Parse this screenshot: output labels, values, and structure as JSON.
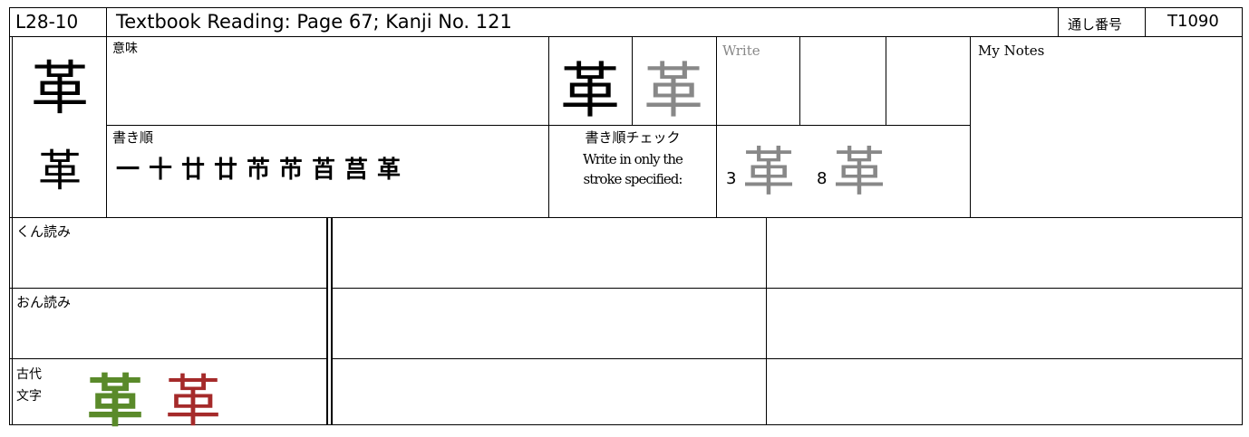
{
  "header": {
    "code": "L28-10",
    "title": "Textbook Reading: Page 67; Kanji No. 121",
    "serial_label": "通し番号",
    "serial": "T1090"
  },
  "kanji": {
    "large": "革",
    "mincho": "革",
    "practice_black": "革",
    "practice_gray": "革"
  },
  "meaning": {
    "label": "意味"
  },
  "stroke_order": {
    "label": "書き順",
    "strokes": [
      "一",
      "十",
      "廿",
      "廿",
      "芇",
      "芇",
      "苩",
      "莒",
      "革"
    ]
  },
  "write": {
    "label": "Write"
  },
  "notes": {
    "label": "My Notes"
  },
  "stroke_check": {
    "label": "書き順チェック",
    "instruction": "Write in only the stroke specified:",
    "items": [
      {
        "number": "3",
        "kanji": "革"
      },
      {
        "number": "8",
        "kanji": "革"
      }
    ]
  },
  "readings": {
    "kun": "くん読み",
    "on": "おん読み"
  },
  "ancient": {
    "label_line1": "古代",
    "label_line2": "文字",
    "glyphs": [
      {
        "char": "革",
        "color": "#5a8a2a"
      },
      {
        "char": "革",
        "color": "#a52a2a"
      }
    ]
  }
}
